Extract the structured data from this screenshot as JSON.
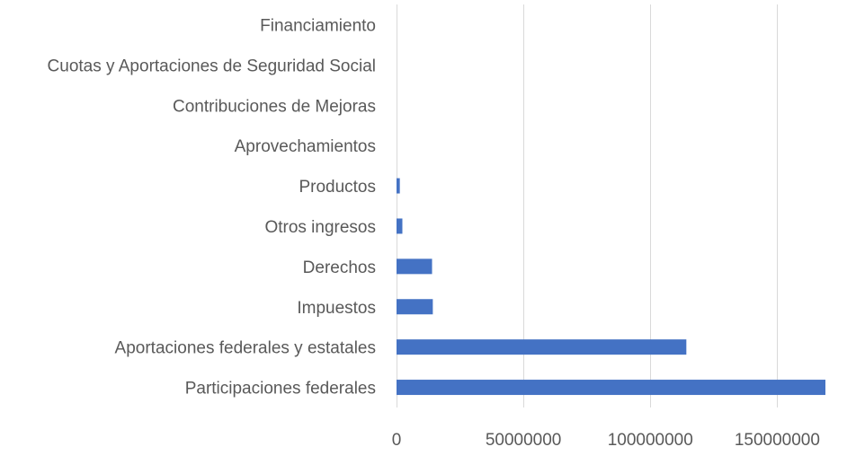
{
  "chart_data": {
    "type": "bar",
    "orientation": "horizontal",
    "categories": [
      "Financiamiento",
      "Cuotas y Aportaciones de Seguridad Social",
      "Contribuciones de Mejoras",
      "Aprovechamientos",
      "Productos",
      "Otros ingresos",
      "Derechos",
      "Impuestos",
      "Aportaciones federales y estatales",
      "Participaciones federales"
    ],
    "values": [
      0,
      0,
      0,
      0,
      1300000,
      2300000,
      14000000,
      14300000,
      114200000,
      169000000
    ],
    "xlim": [
      0,
      169000000
    ],
    "xticks": [
      0,
      50000000,
      100000000,
      150000000
    ],
    "xtick_labels": [
      "0",
      "50000000",
      "100000000",
      "150000000"
    ],
    "grid": "vertical",
    "bar_color": "#4472C4",
    "grid_color": "#D9D9D9",
    "text_color": "#595959"
  }
}
